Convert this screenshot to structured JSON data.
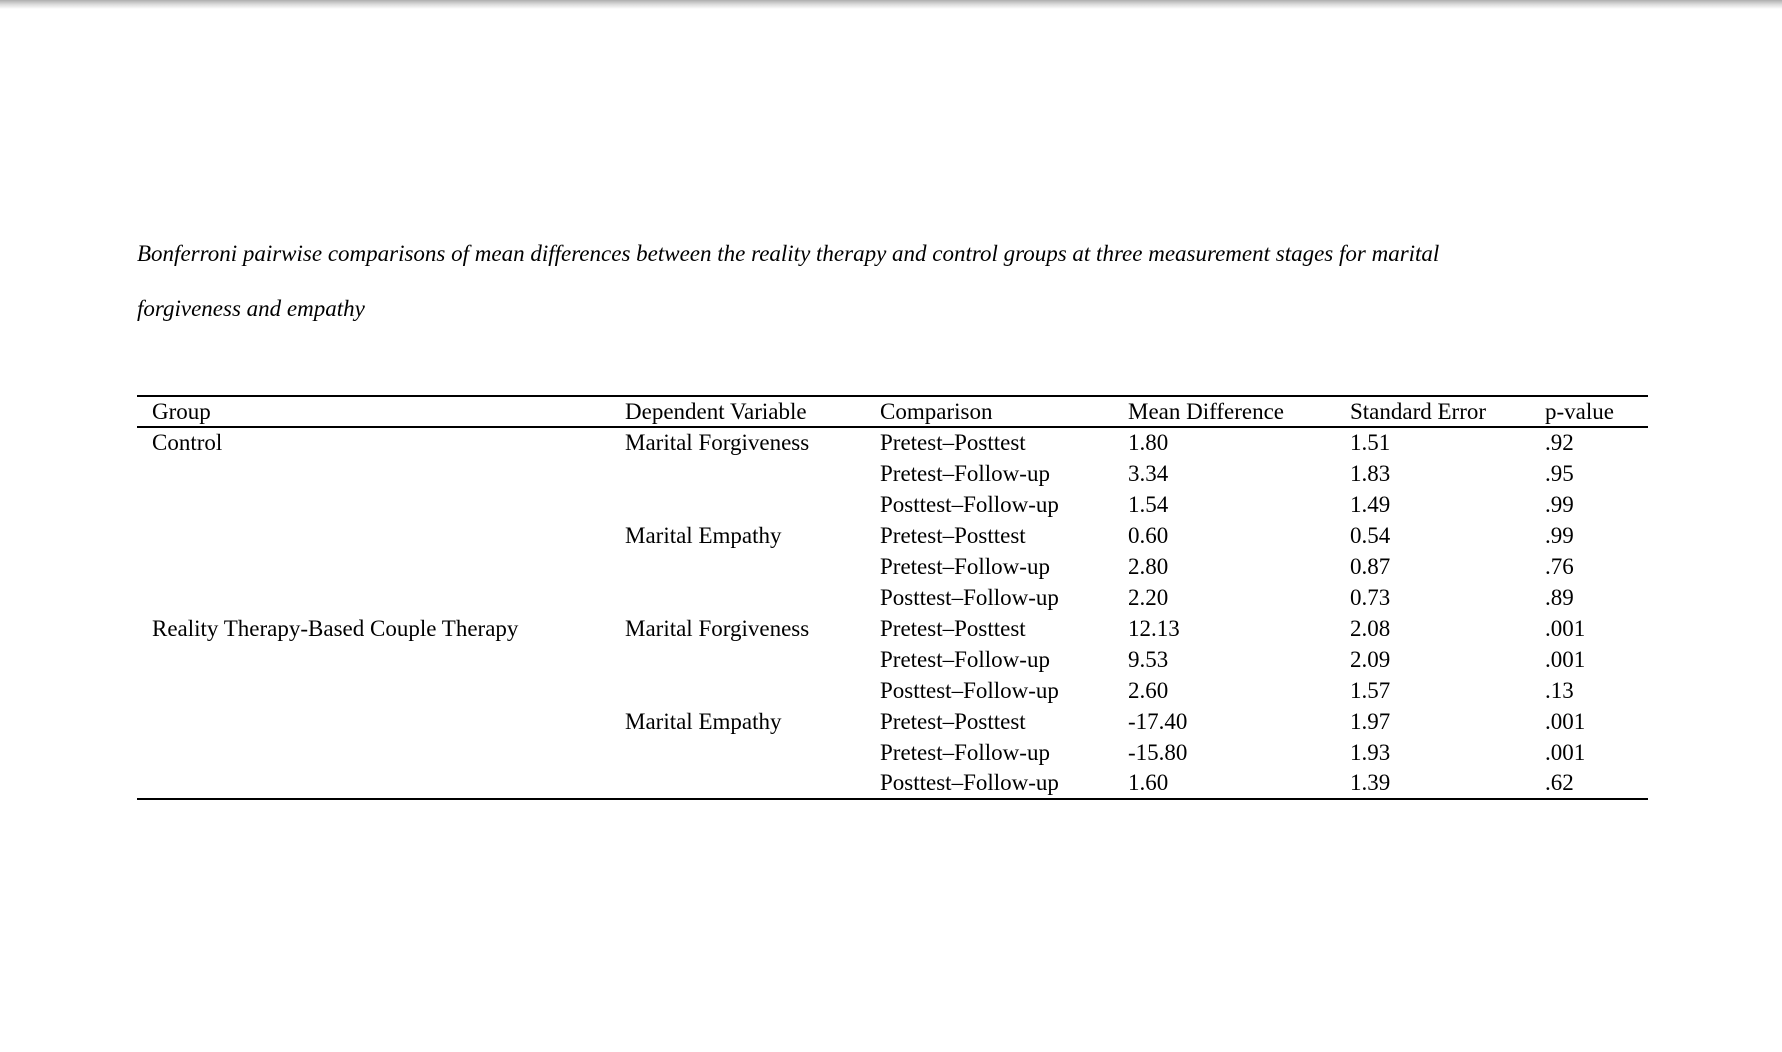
{
  "caption": {
    "line1": "Bonferroni pairwise comparisons of mean differences between the reality therapy and control groups at three measurement stages for marital",
    "line2": "forgiveness and empathy"
  },
  "table": {
    "columns": [
      "Group",
      "Dependent Variable",
      "Comparison",
      "Mean Difference",
      "Standard Error",
      "p-value"
    ],
    "rows": [
      {
        "group": "Control",
        "dependent_variable": "Marital Forgiveness",
        "comparison": "Pretest–Posttest",
        "mean_difference": "1.80",
        "standard_error": "1.51",
        "p_value": ".92"
      },
      {
        "group": "",
        "dependent_variable": "",
        "comparison": "Pretest–Follow-up",
        "mean_difference": "3.34",
        "standard_error": "1.83",
        "p_value": ".95"
      },
      {
        "group": "",
        "dependent_variable": "",
        "comparison": "Posttest–Follow-up",
        "mean_difference": "1.54",
        "standard_error": "1.49",
        "p_value": ".99"
      },
      {
        "group": "",
        "dependent_variable": "Marital Empathy",
        "comparison": "Pretest–Posttest",
        "mean_difference": "0.60",
        "standard_error": "0.54",
        "p_value": ".99"
      },
      {
        "group": "",
        "dependent_variable": "",
        "comparison": "Pretest–Follow-up",
        "mean_difference": "2.80",
        "standard_error": "0.87",
        "p_value": ".76"
      },
      {
        "group": "",
        "dependent_variable": "",
        "comparison": "Posttest–Follow-up",
        "mean_difference": "2.20",
        "standard_error": "0.73",
        "p_value": ".89"
      },
      {
        "group": "Reality Therapy-Based Couple Therapy",
        "dependent_variable": "Marital Forgiveness",
        "comparison": "Pretest–Posttest",
        "mean_difference": "12.13",
        "standard_error": "2.08",
        "p_value": ".001"
      },
      {
        "group": "",
        "dependent_variable": "",
        "comparison": "Pretest–Follow-up",
        "mean_difference": "9.53",
        "standard_error": "2.09",
        "p_value": ".001"
      },
      {
        "group": "",
        "dependent_variable": "",
        "comparison": "Posttest–Follow-up",
        "mean_difference": "2.60",
        "standard_error": "1.57",
        "p_value": ".13"
      },
      {
        "group": "",
        "dependent_variable": "Marital Empathy",
        "comparison": "Pretest–Posttest",
        "mean_difference": "-17.40",
        "standard_error": "1.97",
        "p_value": ".001"
      },
      {
        "group": "",
        "dependent_variable": "",
        "comparison": "Pretest–Follow-up",
        "mean_difference": "-15.80",
        "standard_error": "1.93",
        "p_value": ".001"
      },
      {
        "group": "",
        "dependent_variable": "",
        "comparison": "Posttest–Follow-up",
        "mean_difference": "1.60",
        "standard_error": "1.39",
        "p_value": ".62"
      }
    ]
  }
}
